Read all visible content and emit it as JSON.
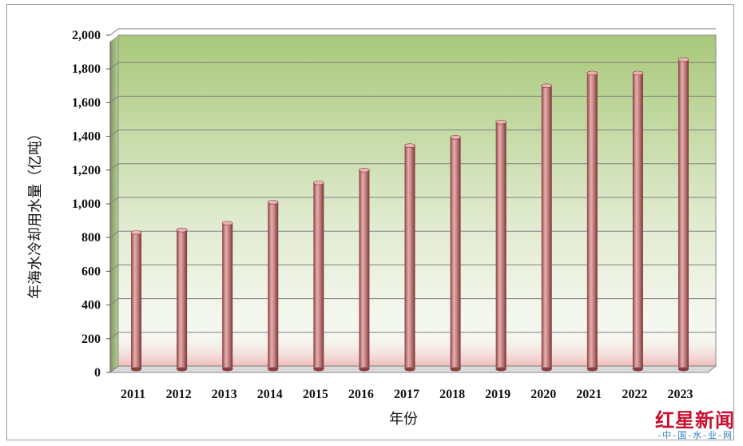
{
  "chart_data": {
    "type": "bar",
    "title": "",
    "xlabel": "年份",
    "ylabel": "年海水冷却用水量（亿吨）",
    "categories": [
      "2011",
      "2012",
      "2013",
      "2014",
      "2015",
      "2016",
      "2017",
      "2018",
      "2019",
      "2020",
      "2021",
      "2022",
      "2023"
    ],
    "values": [
      830,
      845,
      885,
      1010,
      1125,
      1200,
      1345,
      1395,
      1485,
      1700,
      1775,
      1775,
      1855
    ],
    "ylim": [
      0,
      2000
    ],
    "yticks": [
      "0",
      "200",
      "400",
      "600",
      "800",
      "1,000",
      "1,200",
      "1,400",
      "1,600",
      "1,800",
      "2,000"
    ],
    "grid": true,
    "legend": "none",
    "colors": {
      "bar": "#c77a7a",
      "bar_dark": "#8a3f3f",
      "wall_top": "#a9c97a",
      "wall_bottom": "#f3f7ee",
      "floor_band": "#f2c6c6",
      "gridline": "#7f7f7f"
    }
  },
  "watermark": {
    "title": "红星新闻",
    "subtitle": "-中-国-水-业-网"
  }
}
